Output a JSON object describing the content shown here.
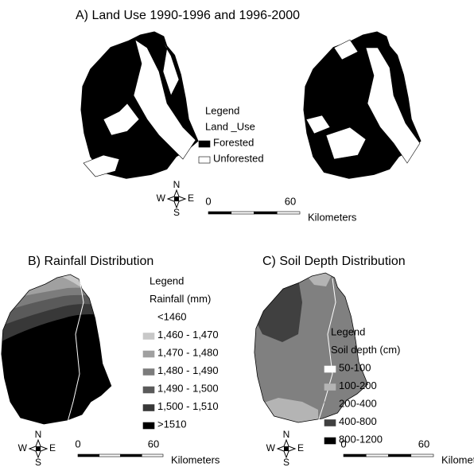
{
  "panel_a": {
    "title": "A) Land Use 1990-1996 and 1996-2000",
    "legend_title": "Legend",
    "legend_subtitle": "Land _Use",
    "items": [
      {
        "label": "Forested",
        "color": "#000000"
      },
      {
        "label": "Unforested",
        "color": "#ffffff"
      }
    ],
    "compass": {
      "n": "N",
      "s": "S",
      "e": "E",
      "w": "W"
    },
    "scale": {
      "start": "0",
      "end": "60",
      "unit": "Kilometers"
    }
  },
  "panel_b": {
    "title": "B) Rainfall Distribution",
    "legend_title": "Legend",
    "legend_subtitle": "Rainfall (mm)",
    "items": [
      {
        "label": "<1460",
        "color": "#ffffff"
      },
      {
        "label": "1,460 - 1,470",
        "color": "#c8c8c8"
      },
      {
        "label": "1,470 - 1,480",
        "color": "#a0a0a0"
      },
      {
        "label": "1,480 - 1,490",
        "color": "#7c7c7c"
      },
      {
        "label": "1,490 - 1,500",
        "color": "#5a5a5a"
      },
      {
        "label": "1,500 - 1,510",
        "color": "#383838"
      },
      {
        "label": ">1510",
        "color": "#000000"
      }
    ],
    "compass": {
      "n": "N",
      "s": "S",
      "e": "E",
      "w": "W"
    },
    "scale": {
      "start": "0",
      "end": "60",
      "unit": "Kilometers"
    }
  },
  "panel_c": {
    "title": "C) Soil Depth Distribution",
    "legend_title": "Legend",
    "legend_subtitle": "Soil depth (cm)",
    "items": [
      {
        "label": "50-100",
        "color": "#ffffff"
      },
      {
        "label": "100-200",
        "color": "#b4b4b4"
      },
      {
        "label": "200-400",
        "color": "#808080"
      },
      {
        "label": "400-800",
        "color": "#404040"
      },
      {
        "label": "800-1200",
        "color": "#000000"
      }
    ],
    "compass": {
      "n": "N",
      "s": "S",
      "e": "E",
      "w": "W"
    },
    "scale": {
      "start": "0",
      "end": "60",
      "unit": "Kilometers"
    }
  }
}
